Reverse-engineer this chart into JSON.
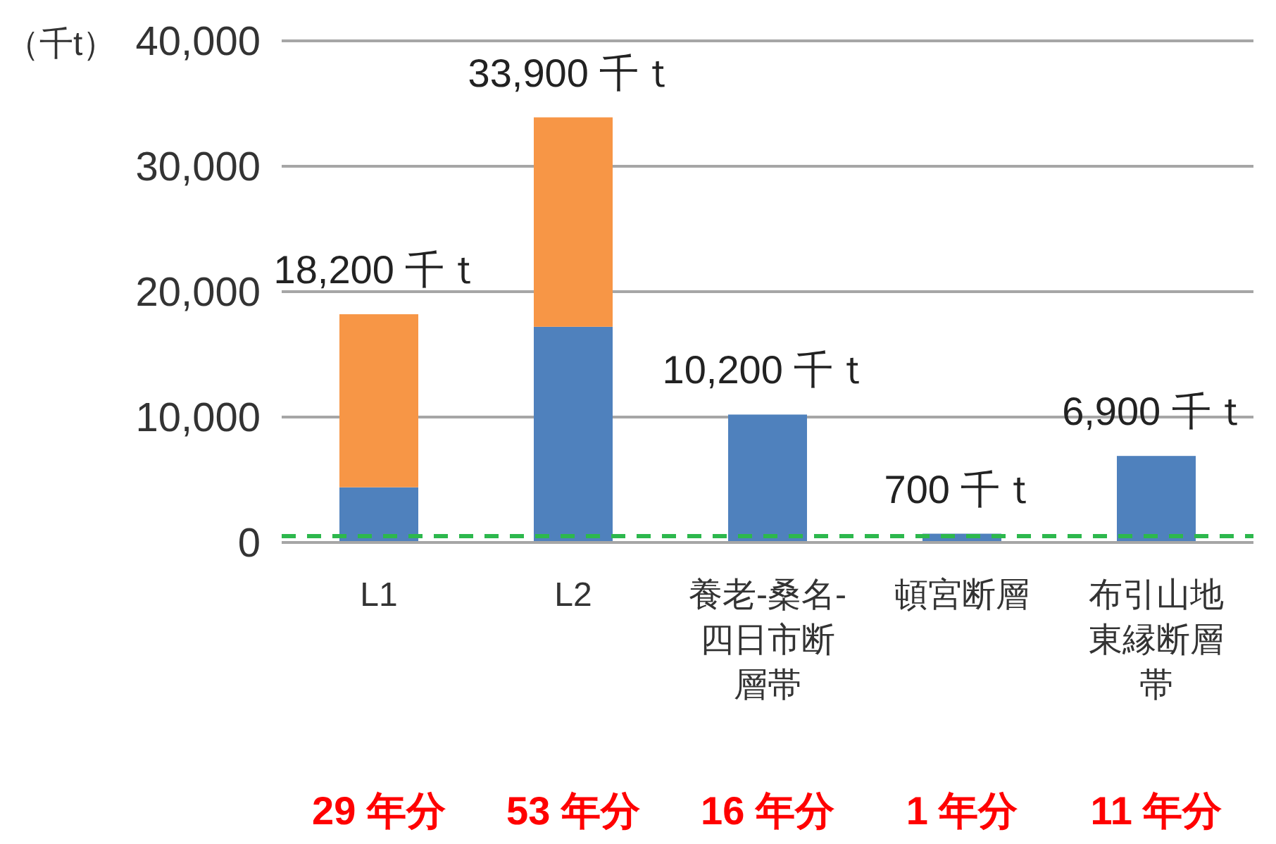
{
  "chart_data": {
    "type": "bar",
    "stacked": true,
    "ylabel": "（千t）",
    "categories": [
      "L1",
      "L2",
      "養老-桑名-四日市断層帯",
      "頓宮断層",
      "布引山地東縁断層帯"
    ],
    "series": [
      {
        "color": "#4f81bd",
        "values": [
          4400,
          17200,
          10200,
          700,
          6900
        ]
      },
      {
        "color": "#f79646",
        "values": [
          13800,
          16700,
          null,
          null,
          null
        ]
      }
    ],
    "totals": [
      "18,200 千ｔ",
      "33,900 千ｔ",
      "10,200 千ｔ",
      "700 千ｔ",
      "6,900 千ｔ"
    ],
    "ylim": [
      0,
      40000
    ],
    "yticks": [
      0,
      {
        "value": 10000,
        "label": "10,000"
      },
      {
        "value": 20000,
        "label": "20,000"
      },
      {
        "value": 30000,
        "label": "30,000"
      },
      {
        "value": 40000,
        "label": "40,000"
      }
    ],
    "grid": "y",
    "ref_lines": [
      {
        "axis": "y",
        "value": 500,
        "color": "#2db84d",
        "line_style": "dashed"
      }
    ],
    "annotations": [
      "29 年分",
      "53 年分",
      "16 年分",
      "1 年分",
      "11 年分"
    ]
  }
}
